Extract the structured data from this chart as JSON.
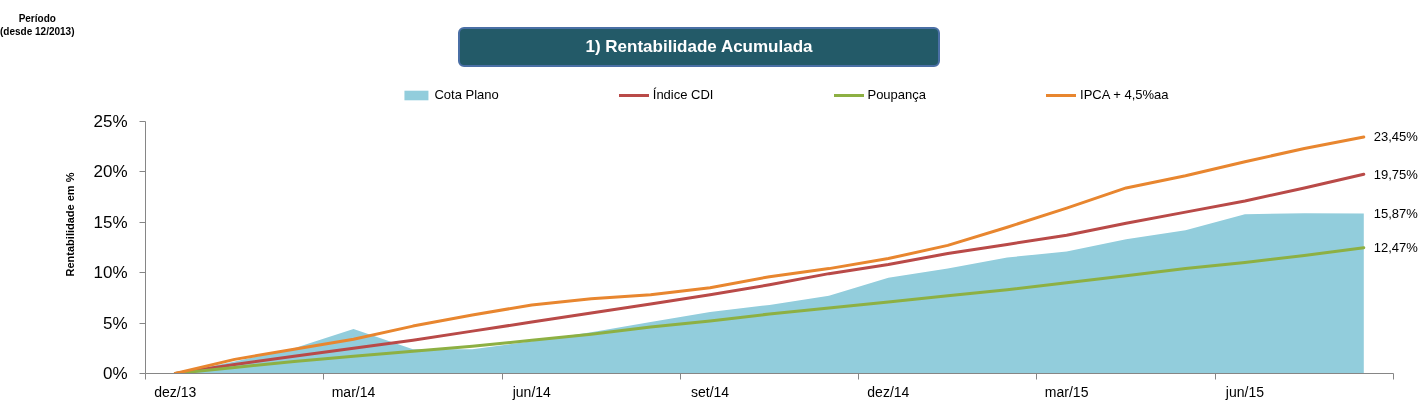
{
  "chart_data": {
    "type": "line",
    "title": "1) Rentabilidade Acumulada",
    "ylabel": "Rentabilidade em %",
    "annotations": [
      "Período\n(desde 12/2013)"
    ],
    "categories": [
      "dez/13",
      null,
      null,
      "mar/14",
      null,
      null,
      "jun/14",
      null,
      null,
      "set/14",
      null,
      null,
      "dez/14",
      null,
      null,
      "mar/15",
      null,
      null,
      "jun/15",
      null,
      null
    ],
    "ylim": [
      0,
      25
    ],
    "yticks": [
      {
        "value": 0,
        "label": "0%"
      },
      {
        "value": 5,
        "label": "5%"
      },
      {
        "value": 10,
        "label": "10%"
      },
      {
        "value": 15,
        "label": "15%"
      },
      {
        "value": 20,
        "label": "20%"
      },
      {
        "value": 25,
        "label": "25%"
      }
    ],
    "legend": "top",
    "series": [
      {
        "name": "Cota Plano",
        "type": "area",
        "color": "#92cddc",
        "values": [
          0,
          1.2,
          2.5,
          4.4,
          2.4,
          2.4,
          3.2,
          4.1,
          5.1,
          6.1,
          6.8,
          7.7,
          9.5,
          10.4,
          11.5,
          12.1,
          13.3,
          14.2,
          15.8,
          15.9,
          15.87
        ],
        "value_labels": [
          null,
          null,
          null,
          null,
          null,
          null,
          null,
          null,
          null,
          null,
          null,
          null,
          null,
          null,
          null,
          null,
          null,
          null,
          null,
          null,
          "15,87%"
        ]
      },
      {
        "name": "Índice CDI",
        "color": "#b94a48",
        "values": [
          0,
          0.9,
          1.7,
          2.5,
          3.3,
          4.2,
          5.1,
          6.0,
          6.9,
          7.8,
          8.8,
          9.9,
          10.8,
          11.9,
          12.8,
          13.7,
          14.9,
          16.0,
          17.1,
          18.4,
          19.75
        ],
        "value_labels": [
          null,
          null,
          null,
          null,
          null,
          null,
          null,
          null,
          null,
          null,
          null,
          null,
          null,
          null,
          null,
          null,
          null,
          null,
          null,
          null,
          "19,75%"
        ]
      },
      {
        "name": "Poupança",
        "color": "#8db043",
        "values": [
          0,
          0.6,
          1.2,
          1.7,
          2.2,
          2.7,
          3.3,
          3.9,
          4.6,
          5.2,
          5.9,
          6.5,
          7.1,
          7.7,
          8.3,
          9.0,
          9.7,
          10.4,
          11.0,
          11.7,
          12.47
        ],
        "value_labels": [
          null,
          null,
          null,
          null,
          null,
          null,
          null,
          null,
          null,
          null,
          null,
          null,
          null,
          null,
          null,
          null,
          null,
          null,
          null,
          null,
          "12,47%"
        ]
      },
      {
        "name": "IPCA + 4,5%aa",
        "color": "#e8862f",
        "values": [
          0,
          1.4,
          2.4,
          3.4,
          4.7,
          5.8,
          6.8,
          7.4,
          7.8,
          8.5,
          9.6,
          10.4,
          11.4,
          12.7,
          14.5,
          16.4,
          18.4,
          19.6,
          21.0,
          22.3,
          23.45
        ],
        "value_labels": [
          null,
          null,
          null,
          null,
          null,
          null,
          null,
          null,
          null,
          null,
          null,
          null,
          null,
          null,
          null,
          null,
          null,
          null,
          null,
          null,
          "23,45%"
        ]
      }
    ]
  }
}
